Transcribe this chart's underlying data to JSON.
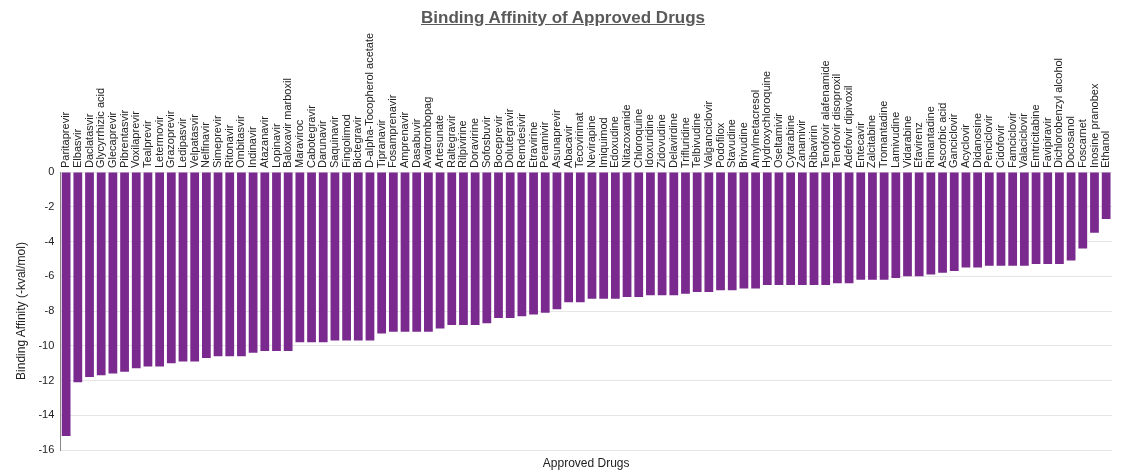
{
  "chart_data": {
    "type": "bar",
    "title": "Binding Affinity of Approved Drugs",
    "xlabel": "Approved Drugs",
    "ylabel": "Binding Affinity (-kval/mol)",
    "categories": [
      "Paritaprevir",
      "Elbasvir",
      "Daclatasvir",
      "Glycyrrhizic acid",
      "Glecaprevir",
      "Pibrentasvir",
      "Voxilaprevir",
      "Tealprevir",
      "Letermovir",
      "Grazoprevir",
      "Ledipasvir",
      "Velpatasvir",
      "Nelfinavir",
      "Simeprevir",
      "Ritonavir",
      "Ombitasvir",
      "Indinavir",
      "Atazanavir",
      "Lopinavir",
      "Baloxavir marboxil",
      "Maraviroc",
      "Cabotegravir",
      "Darunavir",
      "Saquinavir",
      "Fingolimod",
      "Bictegravir",
      "D-alpha-Tocopherol acetate",
      "Tipranavir",
      "Fosamprenavir",
      "Amprenavir",
      "Dasabuvir",
      "Avatrombopag",
      "Artesunate",
      "Raltegravir",
      "Rilpivirine",
      "Doravirine",
      "Sofosbuvir",
      "Boceprevir",
      "Dolutegravir",
      "Remdesivir",
      "Etravirine",
      "Peramivir",
      "Asunaprevir",
      "Abacavir",
      "Tecovirimat",
      "Nevirapine",
      "Imiquimod",
      "Edoxudine",
      "Nitazoxanide",
      "Chloroquine",
      "Idoxuridine",
      "Zidovudine",
      "Delavirdine",
      "Trifluridine",
      "Telbivudine",
      "Valganciclovir",
      "Podofilox",
      "Stavudine",
      "Brivudine",
      "Amylmetacresol",
      "Hydroxychloroquine",
      "Oseltamivir",
      "Cytarabine",
      "Zanamivir",
      "Ribavirin",
      "Tenofovir alafenamide",
      "Tenofovir disoproxil",
      "Adefovir dipivoxil",
      "Entecavir",
      "Zalcitabine",
      "Tromantadine",
      "Lamivudine",
      "Vidarabine",
      "Efavirenz",
      "Rimantadine",
      "Ascorbic acid",
      "Ganciclovir",
      "Acyclovir",
      "Didanosine",
      "Penciclovir",
      "Cidofovir",
      "Famciclovir",
      "Valaciclovir",
      "Emtricitabine",
      "Favipiravir",
      "Dichlorobenzyl alcohol",
      "Docosanol",
      "Foscarnet",
      "Inosine pranobex",
      "Ethanol"
    ],
    "values": [
      -15.2,
      -12.1,
      -11.8,
      -11.7,
      -11.6,
      -11.5,
      -11.3,
      -11.2,
      -11.2,
      -11.0,
      -10.9,
      -10.9,
      -10.7,
      -10.6,
      -10.6,
      -10.6,
      -10.4,
      -10.3,
      -10.3,
      -10.3,
      -9.8,
      -9.8,
      -9.8,
      -9.7,
      -9.7,
      -9.7,
      -9.7,
      -9.3,
      -9.2,
      -9.2,
      -9.2,
      -9.2,
      -9.0,
      -8.8,
      -8.8,
      -8.8,
      -8.7,
      -8.4,
      -8.4,
      -8.3,
      -8.2,
      -8.1,
      -7.9,
      -7.5,
      -7.5,
      -7.3,
      -7.3,
      -7.3,
      -7.2,
      -7.2,
      -7.1,
      -7.1,
      -7.1,
      -7.0,
      -6.9,
      -6.9,
      -6.8,
      -6.8,
      -6.7,
      -6.7,
      -6.5,
      -6.5,
      -6.5,
      -6.5,
      -6.5,
      -6.5,
      -6.4,
      -6.4,
      -6.2,
      -6.2,
      -6.2,
      -6.1,
      -6.0,
      -6.0,
      -5.9,
      -5.8,
      -5.7,
      -5.5,
      -5.5,
      -5.4,
      -5.4,
      -5.4,
      -5.4,
      -5.3,
      -5.3,
      -5.3,
      -5.1,
      -4.4,
      -3.5,
      -2.7
    ],
    "color": "#7a2a8e",
    "ylim": [
      -16,
      0
    ],
    "yticks": [
      -16,
      -14,
      -12,
      -10,
      -8,
      -6,
      -4,
      -2,
      0
    ],
    "grid": "y",
    "legend": false
  }
}
